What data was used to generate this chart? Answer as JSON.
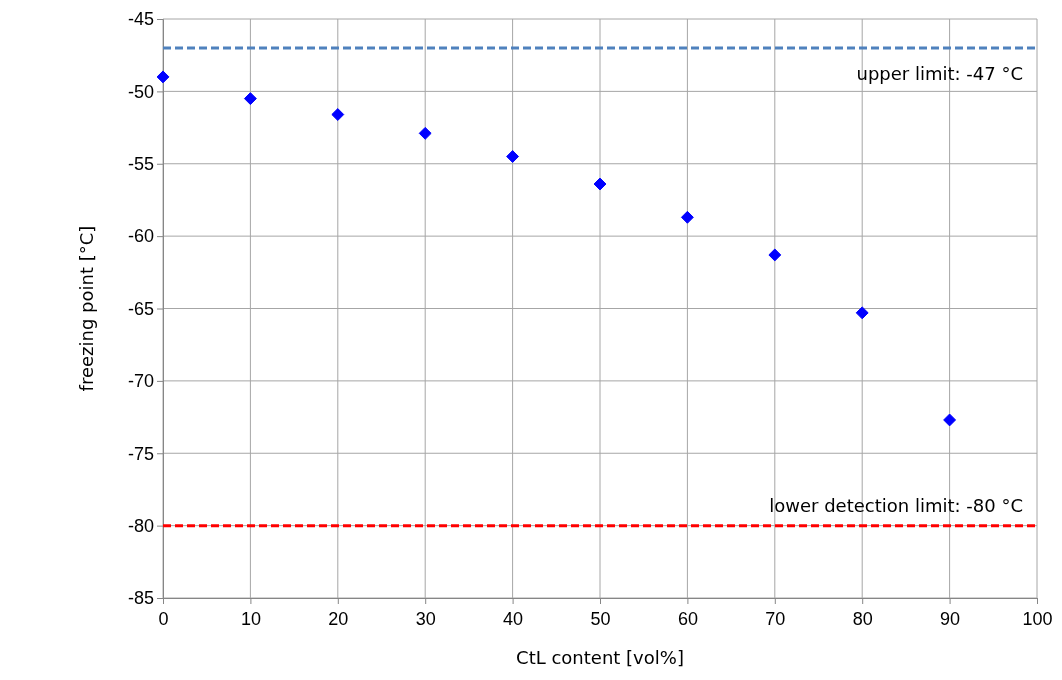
{
  "chart_data": {
    "type": "scatter",
    "xlabel": "CtL content [vol%]",
    "ylabel": "freezing point [°C]",
    "x": [
      0,
      10,
      20,
      30,
      40,
      50,
      60,
      70,
      80,
      90
    ],
    "series": [
      {
        "color": "#0000ff",
        "values": [
          -49.0,
          -50.5,
          -51.6,
          -52.9,
          -54.5,
          -56.4,
          -58.7,
          -61.3,
          -65.3,
          -72.7
        ]
      }
    ],
    "xlim": [
      0,
      100
    ],
    "xticks": [
      0,
      10,
      20,
      30,
      40,
      50,
      60,
      70,
      80,
      90,
      100
    ],
    "ylim": [
      -85,
      -45
    ],
    "yticks": [
      -85,
      -80,
      -75,
      -70,
      -65,
      -60,
      -55,
      -50,
      -45
    ],
    "ref_lines": [
      {
        "axis": "y",
        "value": -47,
        "label": "upper limit: -47 °C",
        "color": "#4f81bd",
        "line_style": "dashed"
      },
      {
        "axis": "y",
        "value": -80,
        "label": "lower detection limit: -80 °C",
        "color": "#ff0000",
        "line_style": "dashed"
      }
    ],
    "grid": true,
    "marker": "diamond"
  }
}
